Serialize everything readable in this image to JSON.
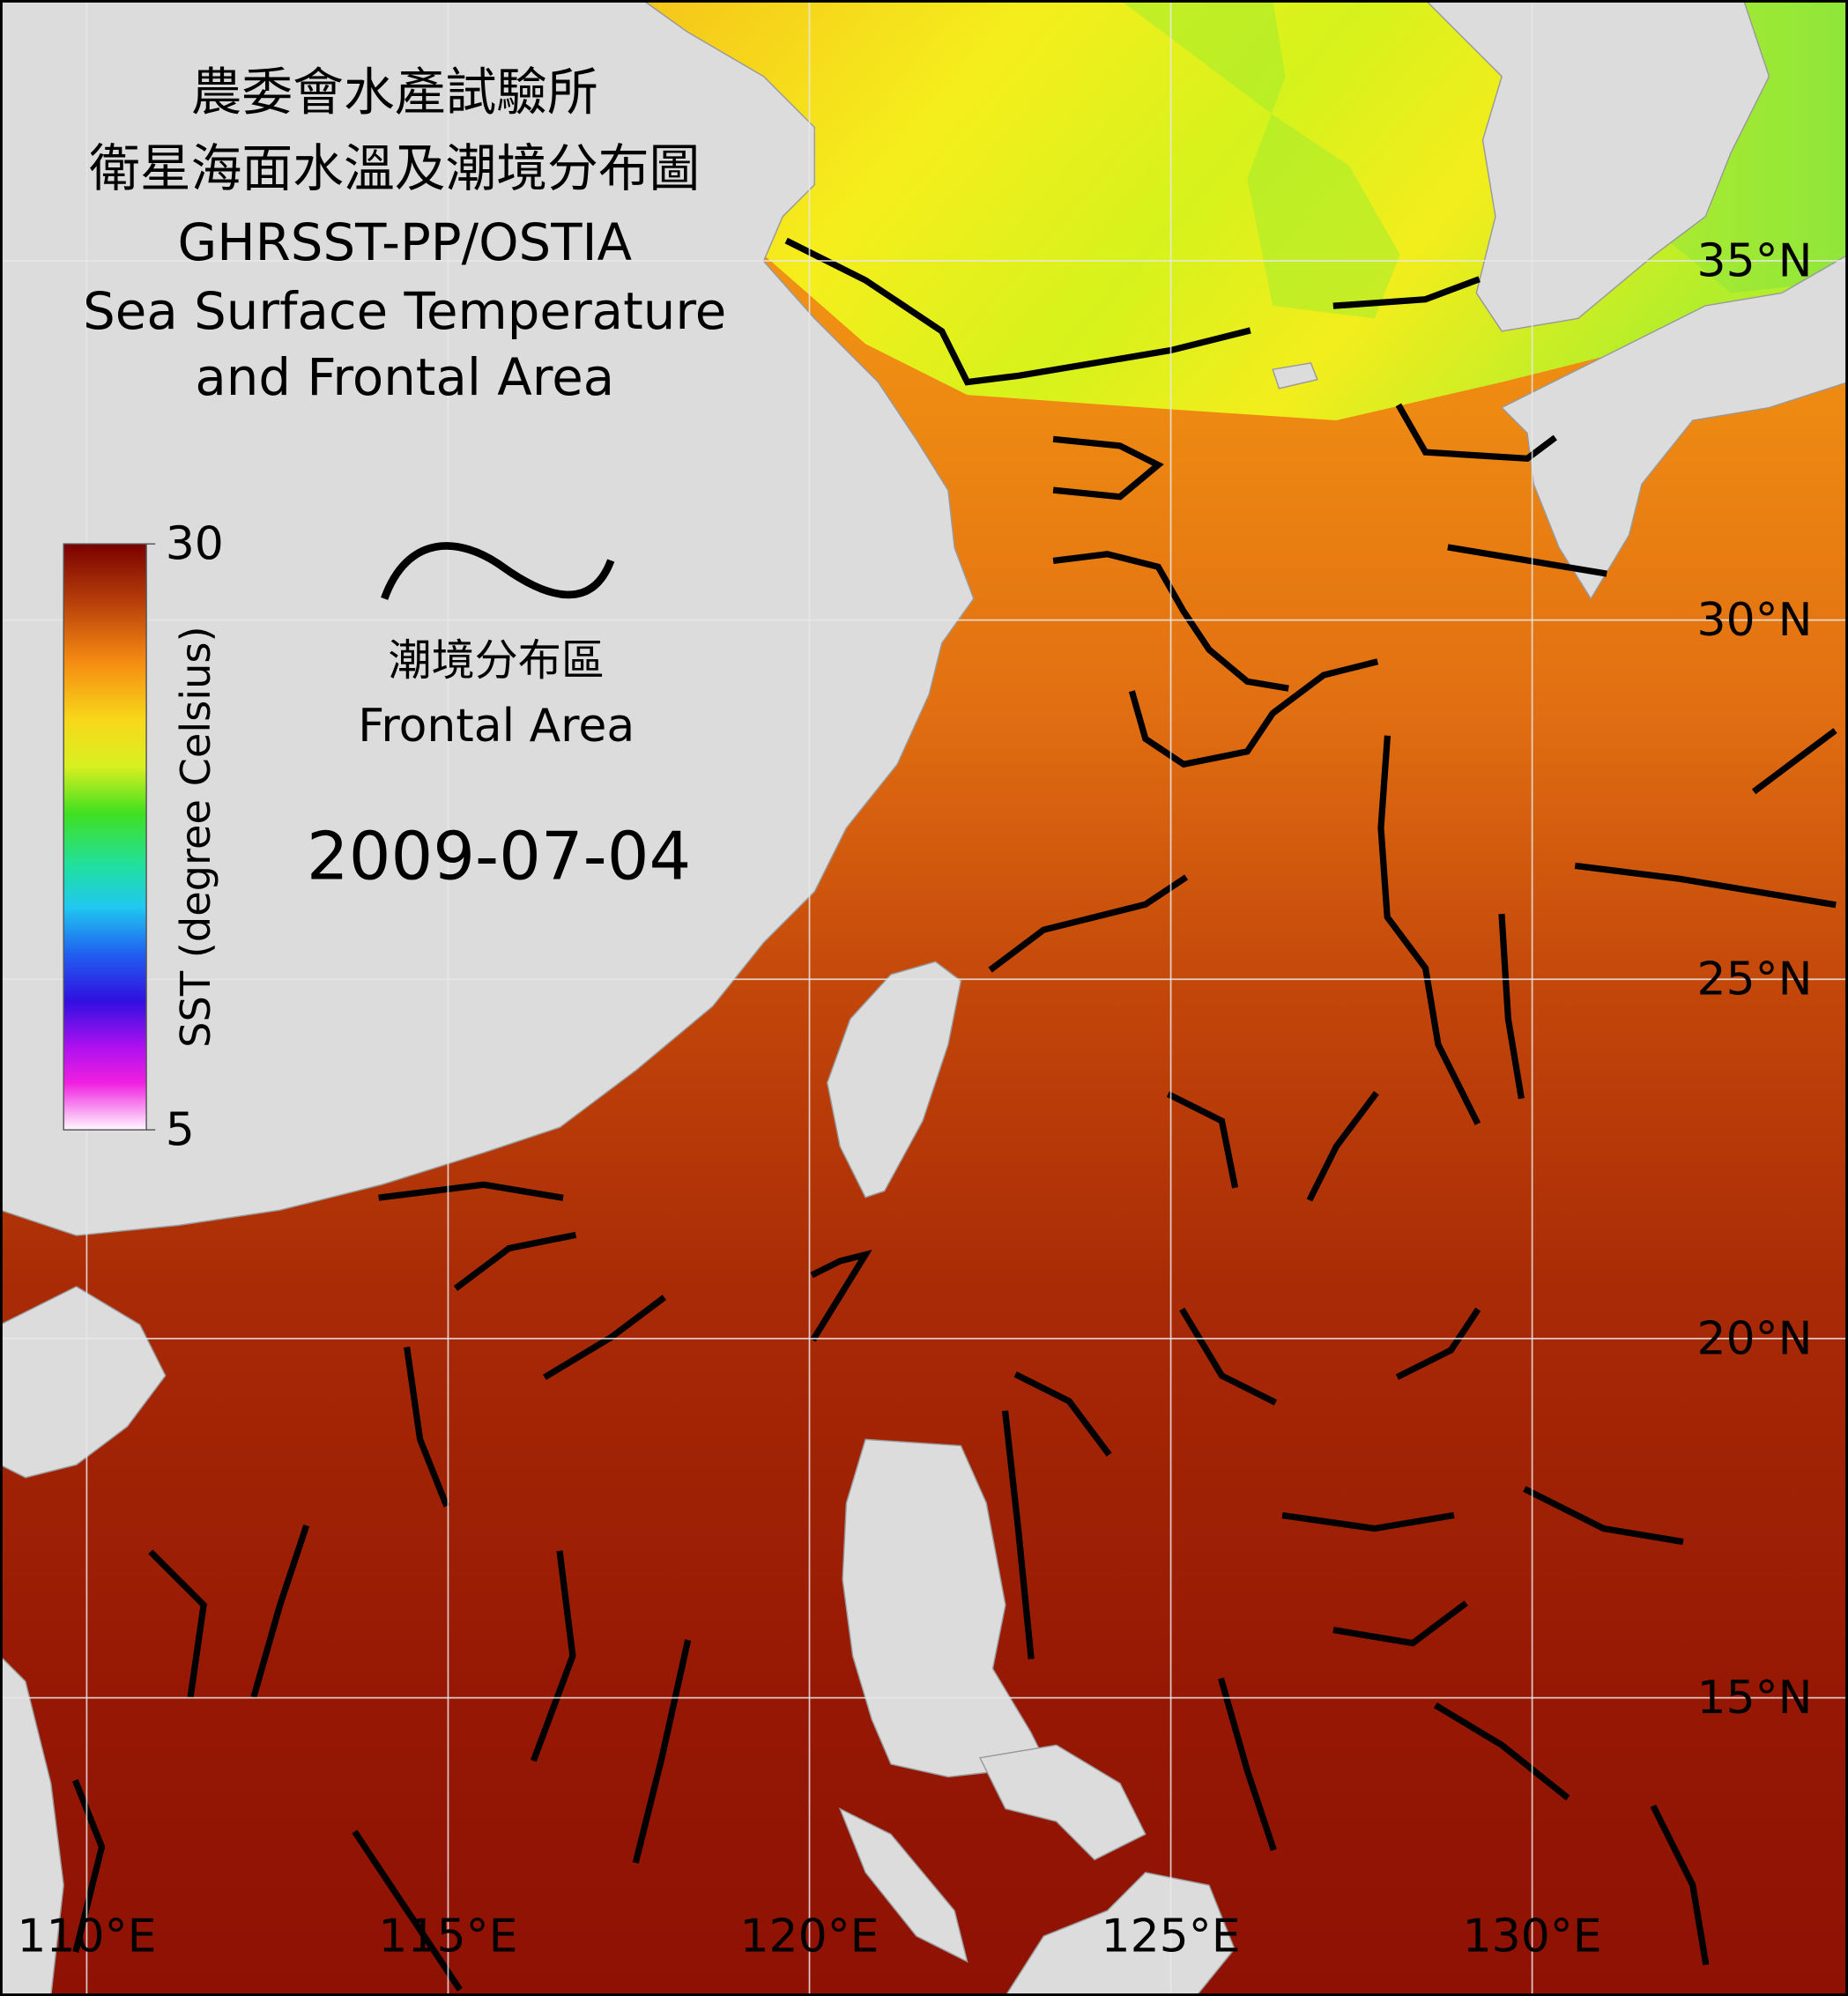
{
  "header": {
    "title_lines": [
      "農委會水產試驗所",
      "衛星海面水溫及潮境分布圖",
      "GHRSST-PP/OSTIA",
      "Sea Surface Temperature",
      "and Frontal Area"
    ]
  },
  "colorbar": {
    "label": "SST (degree Celsius)",
    "range": [
      5,
      30
    ],
    "ticks": [
      30,
      5
    ]
  },
  "legend": {
    "lines": [
      "潮境分布區",
      "Frontal Area"
    ]
  },
  "date": "2009-07-04",
  "map": {
    "xlim": [
      108.8,
      134.37
    ],
    "ylim": [
      10.85,
      38.63
    ],
    "xticks": [
      {
        "value": 110,
        "label": "110°E"
      },
      {
        "value": 115,
        "label": "115°E"
      },
      {
        "value": 120,
        "label": "120°E"
      },
      {
        "value": 125,
        "label": "125°E"
      },
      {
        "value": 130,
        "label": "130°E"
      }
    ],
    "yticks": [
      {
        "value": 35,
        "label": "35°N"
      },
      {
        "value": 30,
        "label": "30°N"
      },
      {
        "value": 25,
        "label": "25°N"
      },
      {
        "value": 20,
        "label": "20°N"
      },
      {
        "value": 15,
        "label": "15°N"
      }
    ]
  }
}
